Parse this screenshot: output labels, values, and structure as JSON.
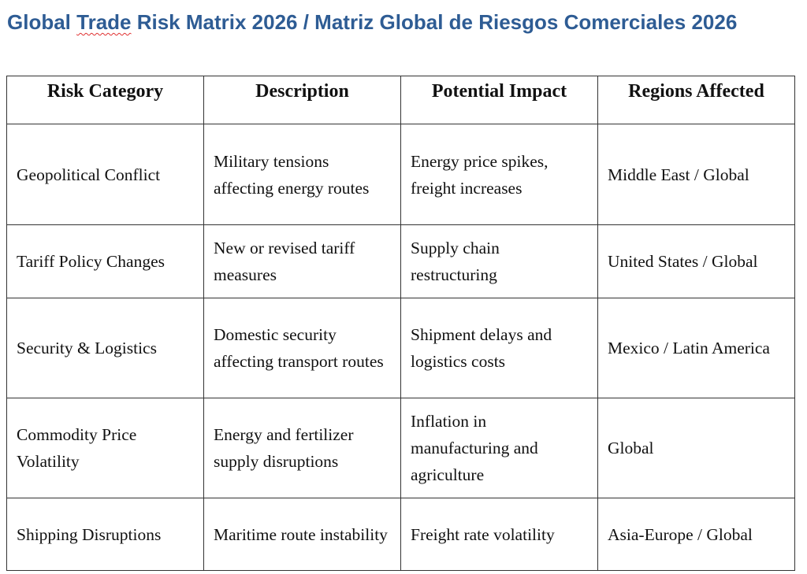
{
  "title": {
    "pre": "Global ",
    "spell": "Trade",
    "post": " Risk Matrix 2026 / Matriz Global de Riesgos Comerciales 2026"
  },
  "table": {
    "headers": [
      "Risk Category",
      "Description",
      "Potential Impact",
      "Regions Affected"
    ],
    "rows": [
      [
        "Geopolitical Conflict",
        "Military tensions affecting energy routes",
        "Energy price spikes, freight increases",
        "Middle East / Global"
      ],
      [
        "Tariff Policy Changes",
        "New or revised tariff measures",
        "Supply chain restructuring",
        "United States / Global"
      ],
      [
        "Security & Logistics",
        "Domestic security affecting transport routes",
        "Shipment delays and logistics costs",
        "Mexico / Latin America"
      ],
      [
        "Commodity Price Volatility",
        "Energy and fertilizer supply disruptions",
        "Inflation in manufacturing and agriculture",
        "Global"
      ],
      [
        "Shipping Disruptions",
        "Maritime route instability",
        "Freight rate volatility",
        "Asia-Europe / Global"
      ]
    ]
  },
  "colors": {
    "title": "#2e5c94",
    "border": "#333333"
  }
}
